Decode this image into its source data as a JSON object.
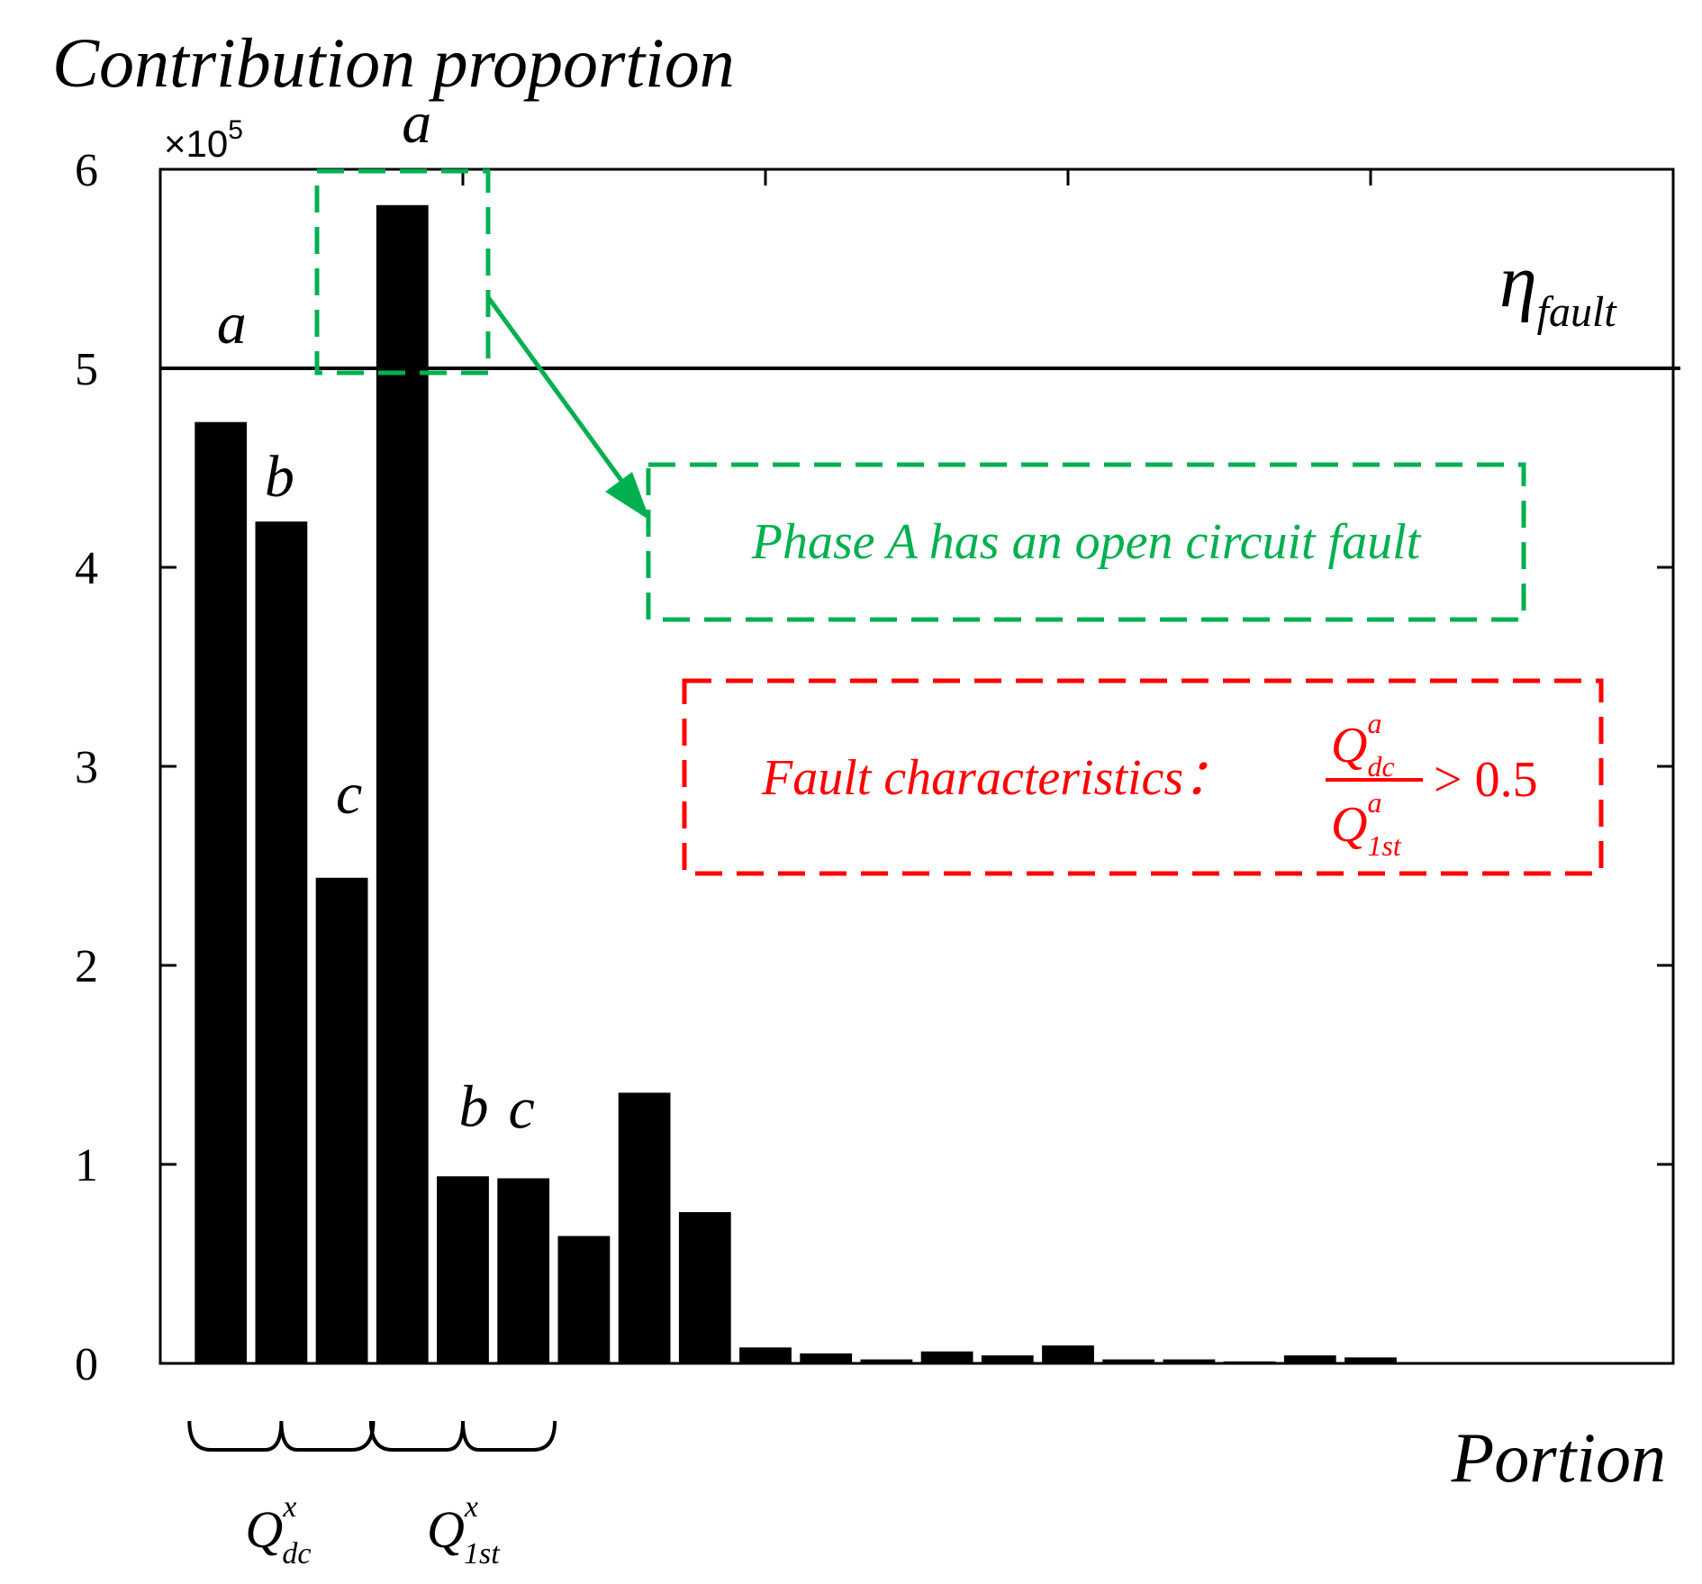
{
  "chart_data": {
    "type": "bar",
    "ylabel": "Contribution proportion",
    "xlabel": "Portion",
    "y_exponent": {
      "prefix": "×10",
      "power": "5"
    },
    "ylim": [
      0,
      6
    ],
    "yticks": [
      0,
      1,
      2,
      3,
      4,
      5,
      6
    ],
    "ytick_labels": [
      "0",
      "1",
      "2",
      "3",
      "4",
      "5",
      "6"
    ],
    "xlim": [
      0,
      25
    ],
    "grid": false,
    "bar_color": "#000000",
    "values": [
      4.73,
      4.23,
      2.44,
      5.82,
      0.94,
      0.93,
      0.64,
      1.36,
      0.76,
      0.08,
      0.05,
      0.02,
      0.06,
      0.04,
      0.09,
      0.02,
      0.02,
      0.01,
      0.04,
      0.03
    ],
    "bar_labels": [
      {
        "index": 0,
        "text": "a"
      },
      {
        "index": 1,
        "text": "b"
      },
      {
        "index": 2,
        "text": "c"
      },
      {
        "index": 3,
        "text": "a"
      },
      {
        "index": 4,
        "text": "b"
      },
      {
        "index": 5,
        "text": "c"
      }
    ],
    "threshold": {
      "value": 5,
      "symbol": "η",
      "subscript": "fault",
      "color": "#000000"
    },
    "groups": [
      {
        "start_index": 0,
        "end_index": 2,
        "base": "Q",
        "superscript": "x",
        "subscript": "dc"
      },
      {
        "start_index": 3,
        "end_index": 5,
        "base": "Q",
        "superscript": "x",
        "subscript": "1st"
      }
    ],
    "annotations": {
      "green": {
        "color": "#00b050",
        "text": "Phase A has an open circuit fault"
      },
      "red": {
        "color": "#ff0000",
        "prefix": "Fault characteristics：",
        "numerator": {
          "base": "Q",
          "superscript": "a",
          "subscript": "dc"
        },
        "denominator": {
          "base": "Q",
          "superscript": "a",
          "subscript": "1st"
        },
        "comparison": "> 0.5"
      }
    }
  }
}
